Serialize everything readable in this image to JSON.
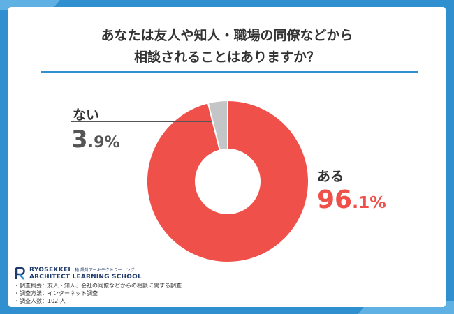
{
  "chart_data": {
    "type": "donut",
    "title_lines": [
      "あなたは友人や知人・職場の同僚などから",
      "相談されることはありますか？"
    ],
    "slices": [
      {
        "label": "ある",
        "value": 96.1,
        "value_main": "96",
        "value_decimal": ".1%",
        "color": "#f0504a"
      },
      {
        "label": "ない",
        "value": 3.9,
        "value_main": "3",
        "value_decimal": ".9%",
        "color": "#c3c5c7"
      }
    ]
  },
  "brand": {
    "name": "RYOSEKKEI",
    "name_ja": "猿 設計アーキテクトラーニング",
    "subtitle": "ARCHITECT LEARNING SCHOOL"
  },
  "notes": [
    "・調査概要：友人・知人、会社の同僚などからの相談に関する調査",
    "・調査方法：インターネット調査",
    "・調査人数：102 人"
  ],
  "colors": {
    "accent": "#2f8fcf",
    "brand": "#1f3a6b"
  }
}
